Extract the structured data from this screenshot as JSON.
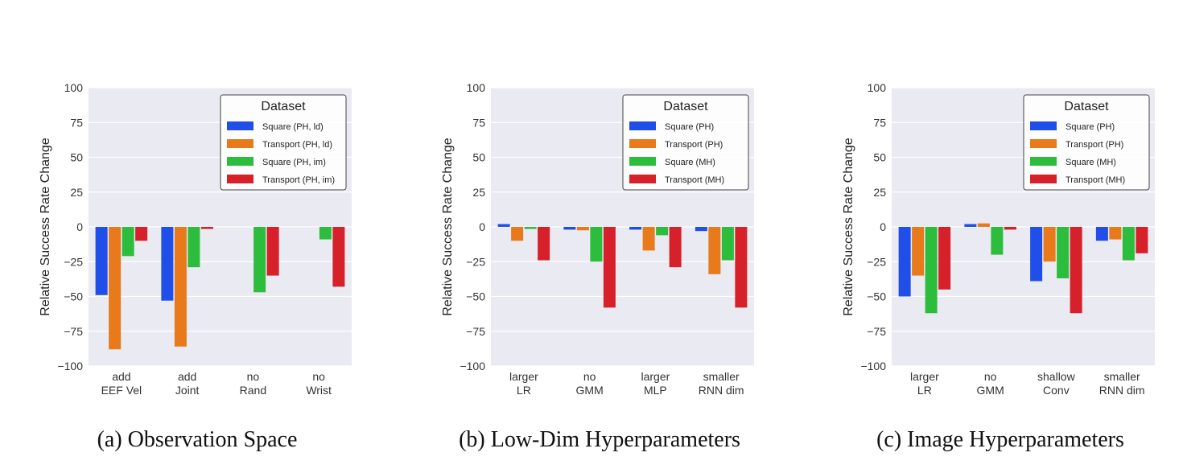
{
  "colors": {
    "blue": "#1f4fe8",
    "orange": "#e87a1c",
    "green": "#2dbd3c",
    "red": "#d6202a",
    "plot_bg": "#eaeaf2",
    "grid": "#ffffff"
  },
  "chart_data": [
    {
      "type": "bar",
      "caption": "(a) Observation Space",
      "ylabel": "Relative Success Rate Change",
      "ylim": [
        -100,
        100
      ],
      "yticks": [
        "100",
        "75",
        "50",
        "25",
        "0",
        "−25",
        "−50",
        "−75",
        "−100"
      ],
      "grid": true,
      "legend_title": "Dataset",
      "legend_position": "top-right",
      "categories": [
        [
          "add",
          "EEF Vel"
        ],
        [
          "add",
          "Joint"
        ],
        [
          "no",
          "Rand"
        ],
        [
          "no",
          "Wrist"
        ]
      ],
      "series": [
        {
          "name": "Square (PH, ld)",
          "color": "#1f4fe8",
          "values": [
            -49,
            -53,
            0,
            0
          ]
        },
        {
          "name": "Transport (PH, ld)",
          "color": "#e87a1c",
          "values": [
            -88,
            -86,
            0,
            0
          ]
        },
        {
          "name": "Square (PH, im)",
          "color": "#2dbd3c",
          "values": [
            -21,
            -29,
            -47,
            -9
          ]
        },
        {
          "name": "Transport (PH, im)",
          "color": "#d6202a",
          "values": [
            -10,
            -1.5,
            -35,
            -43
          ]
        }
      ]
    },
    {
      "type": "bar",
      "caption": "(b) Low-Dim Hyperparameters",
      "ylabel": "Relative Success Rate Change",
      "ylim": [
        -100,
        100
      ],
      "yticks": [
        "100",
        "75",
        "50",
        "25",
        "0",
        "−25",
        "−50",
        "−75",
        "−100"
      ],
      "grid": true,
      "legend_title": "Dataset",
      "legend_position": "top-right",
      "categories": [
        [
          "larger",
          "LR"
        ],
        [
          "no",
          "GMM"
        ],
        [
          "larger",
          "MLP"
        ],
        [
          "smaller",
          "RNN dim"
        ]
      ],
      "series": [
        {
          "name": "Square (PH)",
          "color": "#1f4fe8",
          "values": [
            2,
            -2,
            -2,
            -3
          ]
        },
        {
          "name": "Transport (PH)",
          "color": "#e87a1c",
          "values": [
            -10,
            -2.5,
            -17,
            -34
          ]
        },
        {
          "name": "Square (MH)",
          "color": "#2dbd3c",
          "values": [
            -1.5,
            -25,
            -6,
            -24
          ]
        },
        {
          "name": "Transport (MH)",
          "color": "#d6202a",
          "values": [
            -24,
            -58,
            -29,
            -58
          ]
        }
      ]
    },
    {
      "type": "bar",
      "caption": "(c) Image Hyperparameters",
      "ylabel": "Relative Success Rate Change",
      "ylim": [
        -100,
        100
      ],
      "yticks": [
        "100",
        "75",
        "50",
        "25",
        "0",
        "−25",
        "−50",
        "−75",
        "−100"
      ],
      "grid": true,
      "legend_title": "Dataset",
      "legend_position": "top-right",
      "categories": [
        [
          "larger",
          "LR"
        ],
        [
          "no",
          "GMM"
        ],
        [
          "shallow",
          "Conv"
        ],
        [
          "smaller",
          "RNN dim"
        ]
      ],
      "series": [
        {
          "name": "Square (PH)",
          "color": "#1f4fe8",
          "values": [
            -50,
            2,
            -39,
            -10
          ]
        },
        {
          "name": "Transport (PH)",
          "color": "#e87a1c",
          "values": [
            -35,
            2.5,
            -25,
            -9
          ]
        },
        {
          "name": "Square (MH)",
          "color": "#2dbd3c",
          "values": [
            -62,
            -20,
            -37,
            -24
          ]
        },
        {
          "name": "Transport (MH)",
          "color": "#d6202a",
          "values": [
            -45,
            -2,
            -62,
            -19
          ]
        }
      ]
    }
  ]
}
